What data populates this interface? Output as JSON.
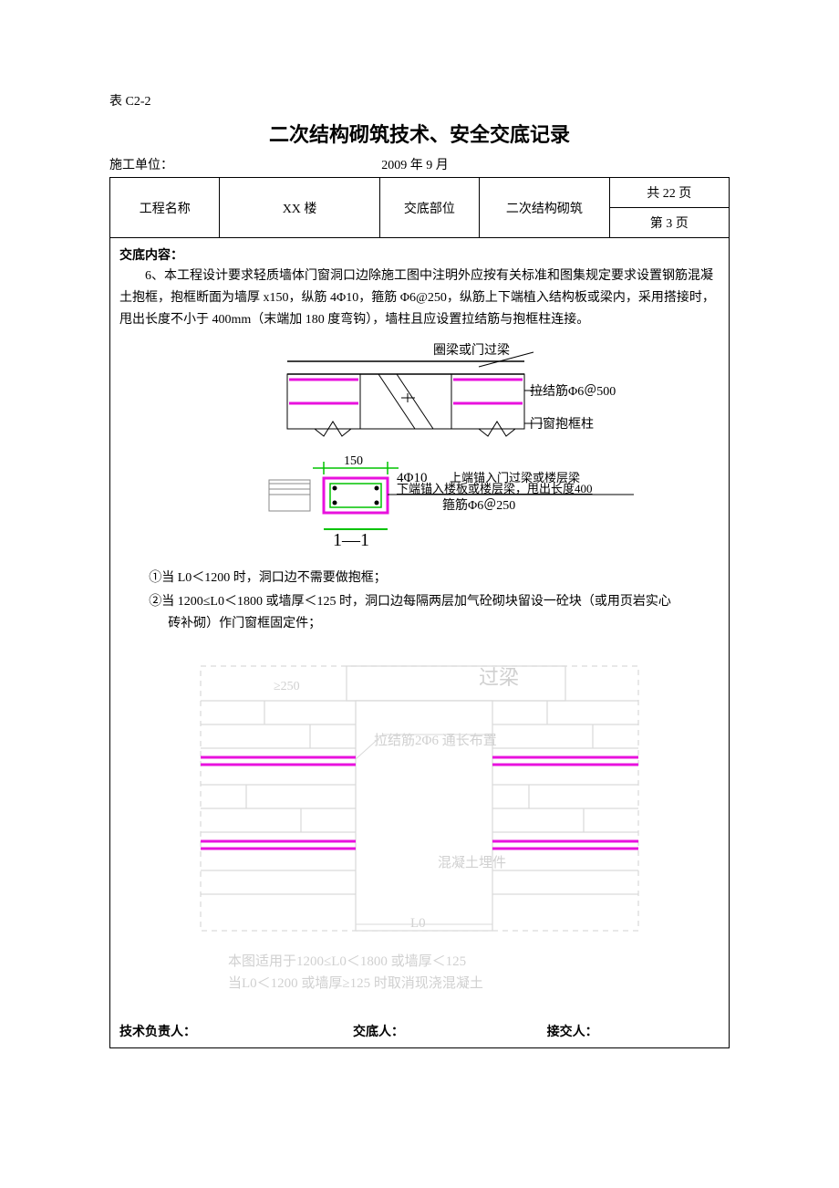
{
  "tableCode": "表 C2-2",
  "docTitle": "二次结构砌筑技术、安全交底记录",
  "orgLabel": "施工单位：",
  "dateText": "2009 年 9 月",
  "header": {
    "projLabel": "工程名称",
    "projName": "XX 楼",
    "partLabel": "交底部位",
    "partName": "二次结构砌筑",
    "totalPages": "共 22 页",
    "pageNo": "第  3 页"
  },
  "contentLabel": "交底内容：",
  "para6": "6、本工程设计要求轻质墙体门窗洞口边除施工图中注明外应按有关标准和图集规定要求设置钢筋混凝土抱框，抱框断面为墙厚 x150，纵筋 4Φ10，箍筋 Φ6@250，纵筋上下端植入结构板或梁内，采用搭接时，甩出长度不小于 400mm（末端加 180 度弯钩），墙柱且应设置拉结筋与抱框柱连接。",
  "diagram1": {
    "beamLabel": "圈梁或门过梁",
    "tieLabel": "拉结筋Φ6＠500",
    "colLabel": "门窗抱框柱",
    "dim150": "150",
    "rebar": "4Φ10",
    "rebarNote": "上端锚入门过梁或楼层梁",
    "bottomNote": "下端锚入楼板或楼层梁，甩出长度400",
    "stirrup": "箍筋Φ6＠250",
    "sectionMark": "1—1",
    "colors": {
      "magenta": "#e811de",
      "green": "#00c300",
      "gray": "#888888"
    }
  },
  "note1": "①当 L0＜1200 时，洞口边不需要做抱框；",
  "note2": "②当 1200≤L0＜1800 或墙厚＜125 时，洞口边每隔两层加气砼砌块留设一砼块（或用页岩实心砖补砌）作门窗框固定件；",
  "diagram2": {
    "lintel": "过梁",
    "dim": "≥250",
    "tie": "拉结筋2Φ6 通长布置",
    "embed": "混凝土埋件",
    "caption1": "本图适用于1200≤L0＜1800 或墙厚＜125",
    "caption2": "当L0＜1200 或墙厚≥125 时取消现浇混凝土",
    "l0": "L0",
    "colors": {
      "magenta": "#e811de",
      "faint": "#d9d9d9",
      "faintText": "#d0d0d0"
    }
  },
  "sig": {
    "a": "技术负责人：",
    "b": "交底人：",
    "c": "接交人："
  }
}
